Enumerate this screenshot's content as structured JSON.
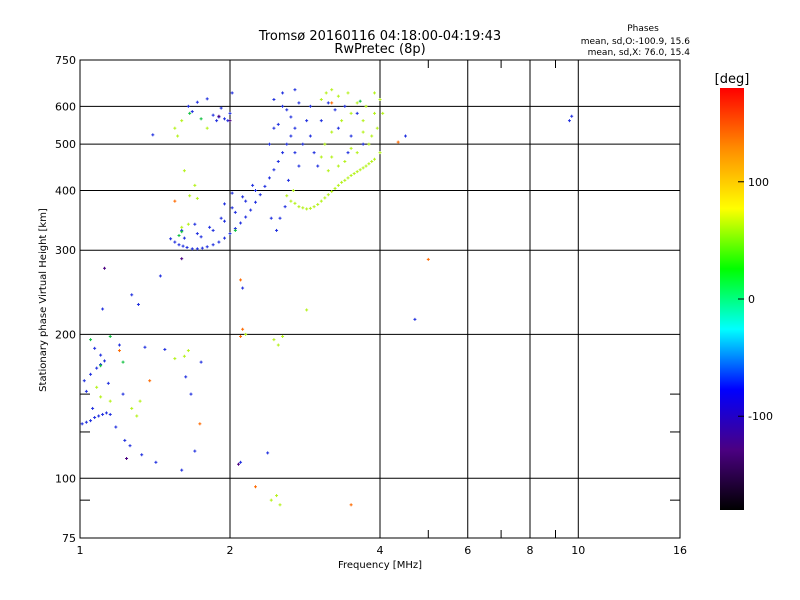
{
  "chart_data": {
    "type": "scatter",
    "title": "Tromsø 20160116 04:18:00-04:19:43",
    "subtitle": "RwPretec (8p)",
    "xlabel": "Frequency [MHz]",
    "ylabel": "Stationary phase Virtual Height [km]",
    "x_scale": "log",
    "y_scale": "log",
    "xlim": [
      1,
      16
    ],
    "ylim": [
      75,
      750
    ],
    "grid": true,
    "x_ticks": [
      {
        "value": 1,
        "label": "1"
      },
      {
        "value": 2,
        "label": "2"
      },
      {
        "value": 4,
        "label": "4"
      },
      {
        "value": 6,
        "label": "6"
      },
      {
        "value": 8,
        "label": "8"
      },
      {
        "value": 10,
        "label": "10"
      },
      {
        "value": 16,
        "label": "16"
      }
    ],
    "x_minor_ticks": [
      5,
      7,
      9
    ],
    "y_ticks": [
      {
        "value": 75,
        "label": "75"
      },
      {
        "value": 100,
        "label": "100"
      },
      {
        "value": 200,
        "label": "200"
      },
      {
        "value": 300,
        "label": "300"
      },
      {
        "value": 400,
        "label": "400"
      },
      {
        "value": 500,
        "label": "500"
      },
      {
        "value": 600,
        "label": "600"
      },
      {
        "value": 750,
        "label": "750"
      }
    ],
    "y_minor_ticks": [
      90,
      125,
      150
    ],
    "stats": {
      "header": "Phases",
      "line_o": "mean, sd,O:-100.9, 15.6",
      "line_x": "mean, sd,X:  76.0, 15.4"
    },
    "colorbar": {
      "label": "[deg]",
      "range": [
        -180,
        180
      ],
      "ticks": [
        {
          "value": 100,
          "label": "100"
        },
        {
          "value": 0,
          "label": "0"
        },
        {
          "value": -100,
          "label": "-100"
        }
      ],
      "colors": [
        "#000000",
        "#4b0082",
        "#0000ff",
        "#00ffff",
        "#00ff00",
        "#ffff00",
        "#ff8c00",
        "#ff0000"
      ]
    },
    "series": [
      {
        "points": [
          {
            "x": 1.01,
            "y": 130
          },
          {
            "x": 1.03,
            "y": 131
          },
          {
            "x": 1.05,
            "y": 132
          },
          {
            "x": 1.07,
            "y": 134
          },
          {
            "x": 1.09,
            "y": 135
          },
          {
            "x": 1.11,
            "y": 136
          },
          {
            "x": 1.13,
            "y": 137
          },
          {
            "x": 1.15,
            "y": 136
          },
          {
            "x": 1.02,
            "y": 160
          },
          {
            "x": 1.05,
            "y": 165
          },
          {
            "x": 1.08,
            "y": 170
          },
          {
            "x": 1.1,
            "y": 173
          },
          {
            "x": 1.12,
            "y": 176
          },
          {
            "x": 1.07,
            "y": 187
          },
          {
            "x": 1.1,
            "y": 181
          },
          {
            "x": 1.03,
            "y": 152
          },
          {
            "x": 1.06,
            "y": 140
          },
          {
            "x": 1.14,
            "y": 158
          },
          {
            "x": 1.11,
            "y": 226
          },
          {
            "x": 1.45,
            "y": 265
          },
          {
            "x": 1.23,
            "y": 120
          },
          {
            "x": 1.26,
            "y": 117
          },
          {
            "x": 1.33,
            "y": 112
          },
          {
            "x": 1.42,
            "y": 108
          },
          {
            "x": 1.2,
            "y": 190
          },
          {
            "x": 1.35,
            "y": 188
          },
          {
            "x": 1.27,
            "y": 242
          },
          {
            "x": 1.31,
            "y": 231
          },
          {
            "x": 1.52,
            "y": 317
          },
          {
            "x": 1.55,
            "y": 312
          },
          {
            "x": 1.58,
            "y": 308
          },
          {
            "x": 1.61,
            "y": 306
          },
          {
            "x": 1.64,
            "y": 304
          },
          {
            "x": 1.68,
            "y": 302
          },
          {
            "x": 1.72,
            "y": 302
          },
          {
            "x": 1.76,
            "y": 303
          },
          {
            "x": 1.8,
            "y": 305
          },
          {
            "x": 1.85,
            "y": 308
          },
          {
            "x": 1.9,
            "y": 312
          },
          {
            "x": 1.95,
            "y": 318
          },
          {
            "x": 2.0,
            "y": 325
          },
          {
            "x": 2.05,
            "y": 333
          },
          {
            "x": 2.1,
            "y": 342
          },
          {
            "x": 2.15,
            "y": 352
          },
          {
            "x": 2.2,
            "y": 364
          },
          {
            "x": 2.25,
            "y": 378
          },
          {
            "x": 2.3,
            "y": 392
          },
          {
            "x": 2.35,
            "y": 408
          },
          {
            "x": 2.4,
            "y": 425
          },
          {
            "x": 2.45,
            "y": 442
          },
          {
            "x": 2.5,
            "y": 460
          },
          {
            "x": 2.55,
            "y": 480
          },
          {
            "x": 2.6,
            "y": 500
          },
          {
            "x": 2.65,
            "y": 520
          },
          {
            "x": 2.7,
            "y": 540
          },
          {
            "x": 1.75,
            "y": 320
          },
          {
            "x": 1.85,
            "y": 330
          },
          {
            "x": 1.95,
            "y": 345
          },
          {
            "x": 2.05,
            "y": 360
          },
          {
            "x": 2.15,
            "y": 380
          },
          {
            "x": 2.25,
            "y": 400
          },
          {
            "x": 1.95,
            "y": 375
          },
          {
            "x": 2.02,
            "y": 395
          },
          {
            "x": 1.6,
            "y": 330
          },
          {
            "x": 1.7,
            "y": 340
          },
          {
            "x": 1.62,
            "y": 318
          },
          {
            "x": 1.72,
            "y": 325
          },
          {
            "x": 1.82,
            "y": 335
          },
          {
            "x": 1.92,
            "y": 350
          },
          {
            "x": 2.02,
            "y": 368
          },
          {
            "x": 2.12,
            "y": 388
          },
          {
            "x": 2.22,
            "y": 410
          },
          {
            "x": 1.65,
            "y": 600
          },
          {
            "x": 1.68,
            "y": 585
          },
          {
            "x": 1.72,
            "y": 612
          },
          {
            "x": 1.8,
            "y": 622
          },
          {
            "x": 1.85,
            "y": 575
          },
          {
            "x": 1.9,
            "y": 570
          },
          {
            "x": 1.95,
            "y": 565
          },
          {
            "x": 2.0,
            "y": 580
          },
          {
            "x": 2.02,
            "y": 640
          },
          {
            "x": 1.92,
            "y": 595
          },
          {
            "x": 1.88,
            "y": 560
          },
          {
            "x": 1.98,
            "y": 560
          },
          {
            "x": 2.45,
            "y": 620
          },
          {
            "x": 2.55,
            "y": 640
          },
          {
            "x": 2.6,
            "y": 590
          },
          {
            "x": 2.65,
            "y": 570
          },
          {
            "x": 2.7,
            "y": 650
          },
          {
            "x": 2.75,
            "y": 610
          },
          {
            "x": 2.5,
            "y": 550
          },
          {
            "x": 2.85,
            "y": 560
          },
          {
            "x": 2.9,
            "y": 520
          },
          {
            "x": 2.95,
            "y": 480
          },
          {
            "x": 3.0,
            "y": 450
          },
          {
            "x": 2.75,
            "y": 450
          },
          {
            "x": 2.8,
            "y": 500
          },
          {
            "x": 2.62,
            "y": 420
          },
          {
            "x": 2.58,
            "y": 370
          },
          {
            "x": 2.52,
            "y": 350
          },
          {
            "x": 2.48,
            "y": 330
          },
          {
            "x": 2.42,
            "y": 350
          },
          {
            "x": 2.9,
            "y": 600
          },
          {
            "x": 3.05,
            "y": 560
          },
          {
            "x": 3.15,
            "y": 610
          },
          {
            "x": 3.3,
            "y": 540
          },
          {
            "x": 3.4,
            "y": 600
          },
          {
            "x": 3.5,
            "y": 520
          },
          {
            "x": 3.6,
            "y": 580
          },
          {
            "x": 3.7,
            "y": 500
          },
          {
            "x": 3.25,
            "y": 590
          },
          {
            "x": 3.45,
            "y": 480
          },
          {
            "x": 2.12,
            "y": 250
          },
          {
            "x": 2.1,
            "y": 108
          },
          {
            "x": 2.38,
            "y": 113
          },
          {
            "x": 1.7,
            "y": 114
          },
          {
            "x": 1.6,
            "y": 104
          },
          {
            "x": 1.63,
            "y": 163
          },
          {
            "x": 1.67,
            "y": 150
          },
          {
            "x": 1.75,
            "y": 175
          },
          {
            "x": 1.48,
            "y": 186
          },
          {
            "x": 1.4,
            "y": 523
          },
          {
            "x": 4.5,
            "y": 520
          },
          {
            "x": 4.7,
            "y": 215
          },
          {
            "x": 9.6,
            "y": 560
          },
          {
            "x": 9.7,
            "y": 572
          },
          {
            "x": 1.18,
            "y": 128
          },
          {
            "x": 1.22,
            "y": 150
          },
          {
            "x": 2.55,
            "y": 600
          },
          {
            "x": 2.7,
            "y": 480
          },
          {
            "x": 2.4,
            "y": 500
          },
          {
            "x": 2.45,
            "y": 540
          }
        ],
        "color": "#1f2fdf"
      },
      {
        "points": [
          {
            "x": 2.75,
            "y": 370
          },
          {
            "x": 2.8,
            "y": 368
          },
          {
            "x": 2.85,
            "y": 366
          },
          {
            "x": 2.9,
            "y": 367
          },
          {
            "x": 2.95,
            "y": 370
          },
          {
            "x": 3.0,
            "y": 374
          },
          {
            "x": 3.05,
            "y": 380
          },
          {
            "x": 3.1,
            "y": 386
          },
          {
            "x": 3.15,
            "y": 392
          },
          {
            "x": 3.2,
            "y": 398
          },
          {
            "x": 3.25,
            "y": 404
          },
          {
            "x": 3.3,
            "y": 410
          },
          {
            "x": 3.35,
            "y": 416
          },
          {
            "x": 3.4,
            "y": 420
          },
          {
            "x": 3.45,
            "y": 425
          },
          {
            "x": 3.5,
            "y": 430
          },
          {
            "x": 3.55,
            "y": 434
          },
          {
            "x": 3.6,
            "y": 438
          },
          {
            "x": 3.65,
            "y": 442
          },
          {
            "x": 3.7,
            "y": 446
          },
          {
            "x": 3.75,
            "y": 450
          },
          {
            "x": 3.8,
            "y": 455
          },
          {
            "x": 3.85,
            "y": 460
          },
          {
            "x": 3.9,
            "y": 465
          },
          {
            "x": 3.05,
            "y": 620
          },
          {
            "x": 3.12,
            "y": 640
          },
          {
            "x": 3.2,
            "y": 650
          },
          {
            "x": 3.3,
            "y": 630
          },
          {
            "x": 3.45,
            "y": 640
          },
          {
            "x": 3.6,
            "y": 610
          },
          {
            "x": 3.75,
            "y": 600
          },
          {
            "x": 3.9,
            "y": 640
          },
          {
            "x": 4.0,
            "y": 620
          },
          {
            "x": 4.05,
            "y": 580
          },
          {
            "x": 3.95,
            "y": 540
          },
          {
            "x": 3.85,
            "y": 520
          },
          {
            "x": 3.7,
            "y": 560
          },
          {
            "x": 3.5,
            "y": 580
          },
          {
            "x": 3.35,
            "y": 560
          },
          {
            "x": 3.2,
            "y": 530
          },
          {
            "x": 3.1,
            "y": 500
          },
          {
            "x": 3.05,
            "y": 470
          },
          {
            "x": 3.2,
            "y": 470
          },
          {
            "x": 3.4,
            "y": 460
          },
          {
            "x": 3.6,
            "y": 480
          },
          {
            "x": 3.8,
            "y": 500
          },
          {
            "x": 4.0,
            "y": 480
          },
          {
            "x": 3.15,
            "y": 440
          },
          {
            "x": 3.3,
            "y": 450
          },
          {
            "x": 3.5,
            "y": 490
          },
          {
            "x": 3.7,
            "y": 530
          },
          {
            "x": 3.9,
            "y": 580
          },
          {
            "x": 2.6,
            "y": 390
          },
          {
            "x": 2.65,
            "y": 380
          },
          {
            "x": 2.7,
            "y": 376
          },
          {
            "x": 2.68,
            "y": 400
          },
          {
            "x": 1.62,
            "y": 440
          },
          {
            "x": 1.7,
            "y": 410
          },
          {
            "x": 1.66,
            "y": 390
          },
          {
            "x": 1.72,
            "y": 385
          },
          {
            "x": 1.55,
            "y": 540
          },
          {
            "x": 1.6,
            "y": 560
          },
          {
            "x": 1.57,
            "y": 520
          },
          {
            "x": 1.8,
            "y": 540
          },
          {
            "x": 1.65,
            "y": 340
          },
          {
            "x": 1.6,
            "y": 335
          },
          {
            "x": 1.62,
            "y": 180
          },
          {
            "x": 1.65,
            "y": 185
          },
          {
            "x": 1.55,
            "y": 178
          },
          {
            "x": 2.45,
            "y": 195
          },
          {
            "x": 2.5,
            "y": 190
          },
          {
            "x": 2.55,
            "y": 198
          },
          {
            "x": 2.42,
            "y": 90
          },
          {
            "x": 2.48,
            "y": 92
          },
          {
            "x": 2.52,
            "y": 88
          },
          {
            "x": 1.27,
            "y": 140
          },
          {
            "x": 1.3,
            "y": 135
          },
          {
            "x": 1.32,
            "y": 145
          },
          {
            "x": 1.08,
            "y": 155
          },
          {
            "x": 1.1,
            "y": 148
          },
          {
            "x": 1.15,
            "y": 145
          },
          {
            "x": 2.15,
            "y": 200
          },
          {
            "x": 2.85,
            "y": 225
          }
        ],
        "color": "#b5f21b"
      },
      {
        "points": [
          {
            "x": 1.55,
            "y": 380
          },
          {
            "x": 2.1,
            "y": 260
          },
          {
            "x": 2.12,
            "y": 205
          },
          {
            "x": 2.1,
            "y": 198
          },
          {
            "x": 1.74,
            "y": 130
          },
          {
            "x": 1.38,
            "y": 160
          },
          {
            "x": 5.0,
            "y": 287
          },
          {
            "x": 3.5,
            "y": 88
          },
          {
            "x": 1.2,
            "y": 185
          },
          {
            "x": 2.25,
            "y": 96
          },
          {
            "x": 4.35,
            "y": 505
          },
          {
            "x": 3.2,
            "y": 610
          }
        ],
        "color": "#ff6a00"
      },
      {
        "points": [
          {
            "x": 1.05,
            "y": 195
          },
          {
            "x": 1.1,
            "y": 172
          },
          {
            "x": 1.6,
            "y": 328
          },
          {
            "x": 1.58,
            "y": 322
          },
          {
            "x": 2.05,
            "y": 330
          },
          {
            "x": 1.66,
            "y": 580
          },
          {
            "x": 1.75,
            "y": 565
          },
          {
            "x": 3.65,
            "y": 615
          },
          {
            "x": 1.15,
            "y": 198
          },
          {
            "x": 1.22,
            "y": 175
          }
        ],
        "color": "#10c040"
      },
      {
        "points": [
          {
            "x": 1.12,
            "y": 275
          },
          {
            "x": 1.6,
            "y": 288
          },
          {
            "x": 2.08,
            "y": 107
          },
          {
            "x": 1.24,
            "y": 110
          },
          {
            "x": 1.9,
            "y": 572
          },
          {
            "x": 2.0,
            "y": 560
          }
        ],
        "color": "#4b0082"
      }
    ]
  }
}
